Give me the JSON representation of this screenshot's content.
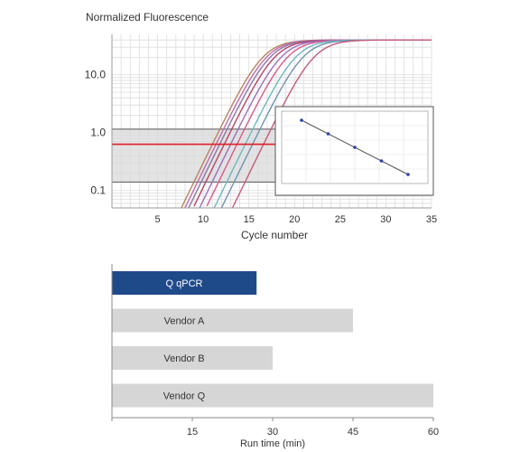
{
  "chart_data": [
    {
      "type": "line",
      "ylabel": "Normalized Fluorescence",
      "xlabel": "Cycle number",
      "yscale": "log",
      "xlim": [
        0,
        35
      ],
      "ylim": [
        0.05,
        50
      ],
      "x_ticks": [
        "5",
        "10",
        "15",
        "20",
        "25",
        "30",
        "35"
      ],
      "y_ticks": [
        {
          "value": 10,
          "label": "10.0"
        },
        {
          "value": 1,
          "label": "1.0"
        },
        {
          "value": 0.1,
          "label": "0.1"
        }
      ],
      "grid": true,
      "threshold": 0.63,
      "threshold_color": "#e0202a",
      "threshold_band": [
        0.14,
        1.15
      ],
      "series": [
        {
          "ct": 11.0,
          "color": "#b5865a"
        },
        {
          "ct": 11.4,
          "color": "#c26bb5"
        },
        {
          "ct": 11.8,
          "color": "#8a7a9e"
        },
        {
          "ct": 12.3,
          "color": "#b8426c"
        },
        {
          "ct": 13.0,
          "color": "#9a6fc0"
        },
        {
          "ct": 13.7,
          "color": "#d55a8c"
        },
        {
          "ct": 14.6,
          "color": "#6fb7c4"
        },
        {
          "ct": 15.4,
          "color": "#6f93b3"
        },
        {
          "ct": 16.6,
          "color": "#c45a7a"
        }
      ],
      "plateau": 40,
      "inset": {
        "type": "scatter",
        "points": [
          [
            1,
            5
          ],
          [
            2,
            4
          ],
          [
            3,
            3
          ],
          [
            4,
            2
          ],
          [
            5,
            1
          ]
        ],
        "point_color": "#2a3faa"
      }
    },
    {
      "type": "bar",
      "orientation": "horizontal",
      "xlabel": "Run time (min)",
      "xlim": [
        0,
        60
      ],
      "x_ticks": [
        "15",
        "30",
        "45",
        "60"
      ],
      "categories": [
        "Q qPCR",
        "Vendor A",
        "Vendor B",
        "Vendor Q"
      ],
      "values": [
        27,
        45,
        30,
        60
      ],
      "colors": [
        "#1f4a8a",
        "#d6d6d6",
        "#d6d6d6",
        "#d6d6d6"
      ],
      "label_colors": [
        "#ffffff",
        "#333333",
        "#333333",
        "#333333"
      ]
    }
  ]
}
